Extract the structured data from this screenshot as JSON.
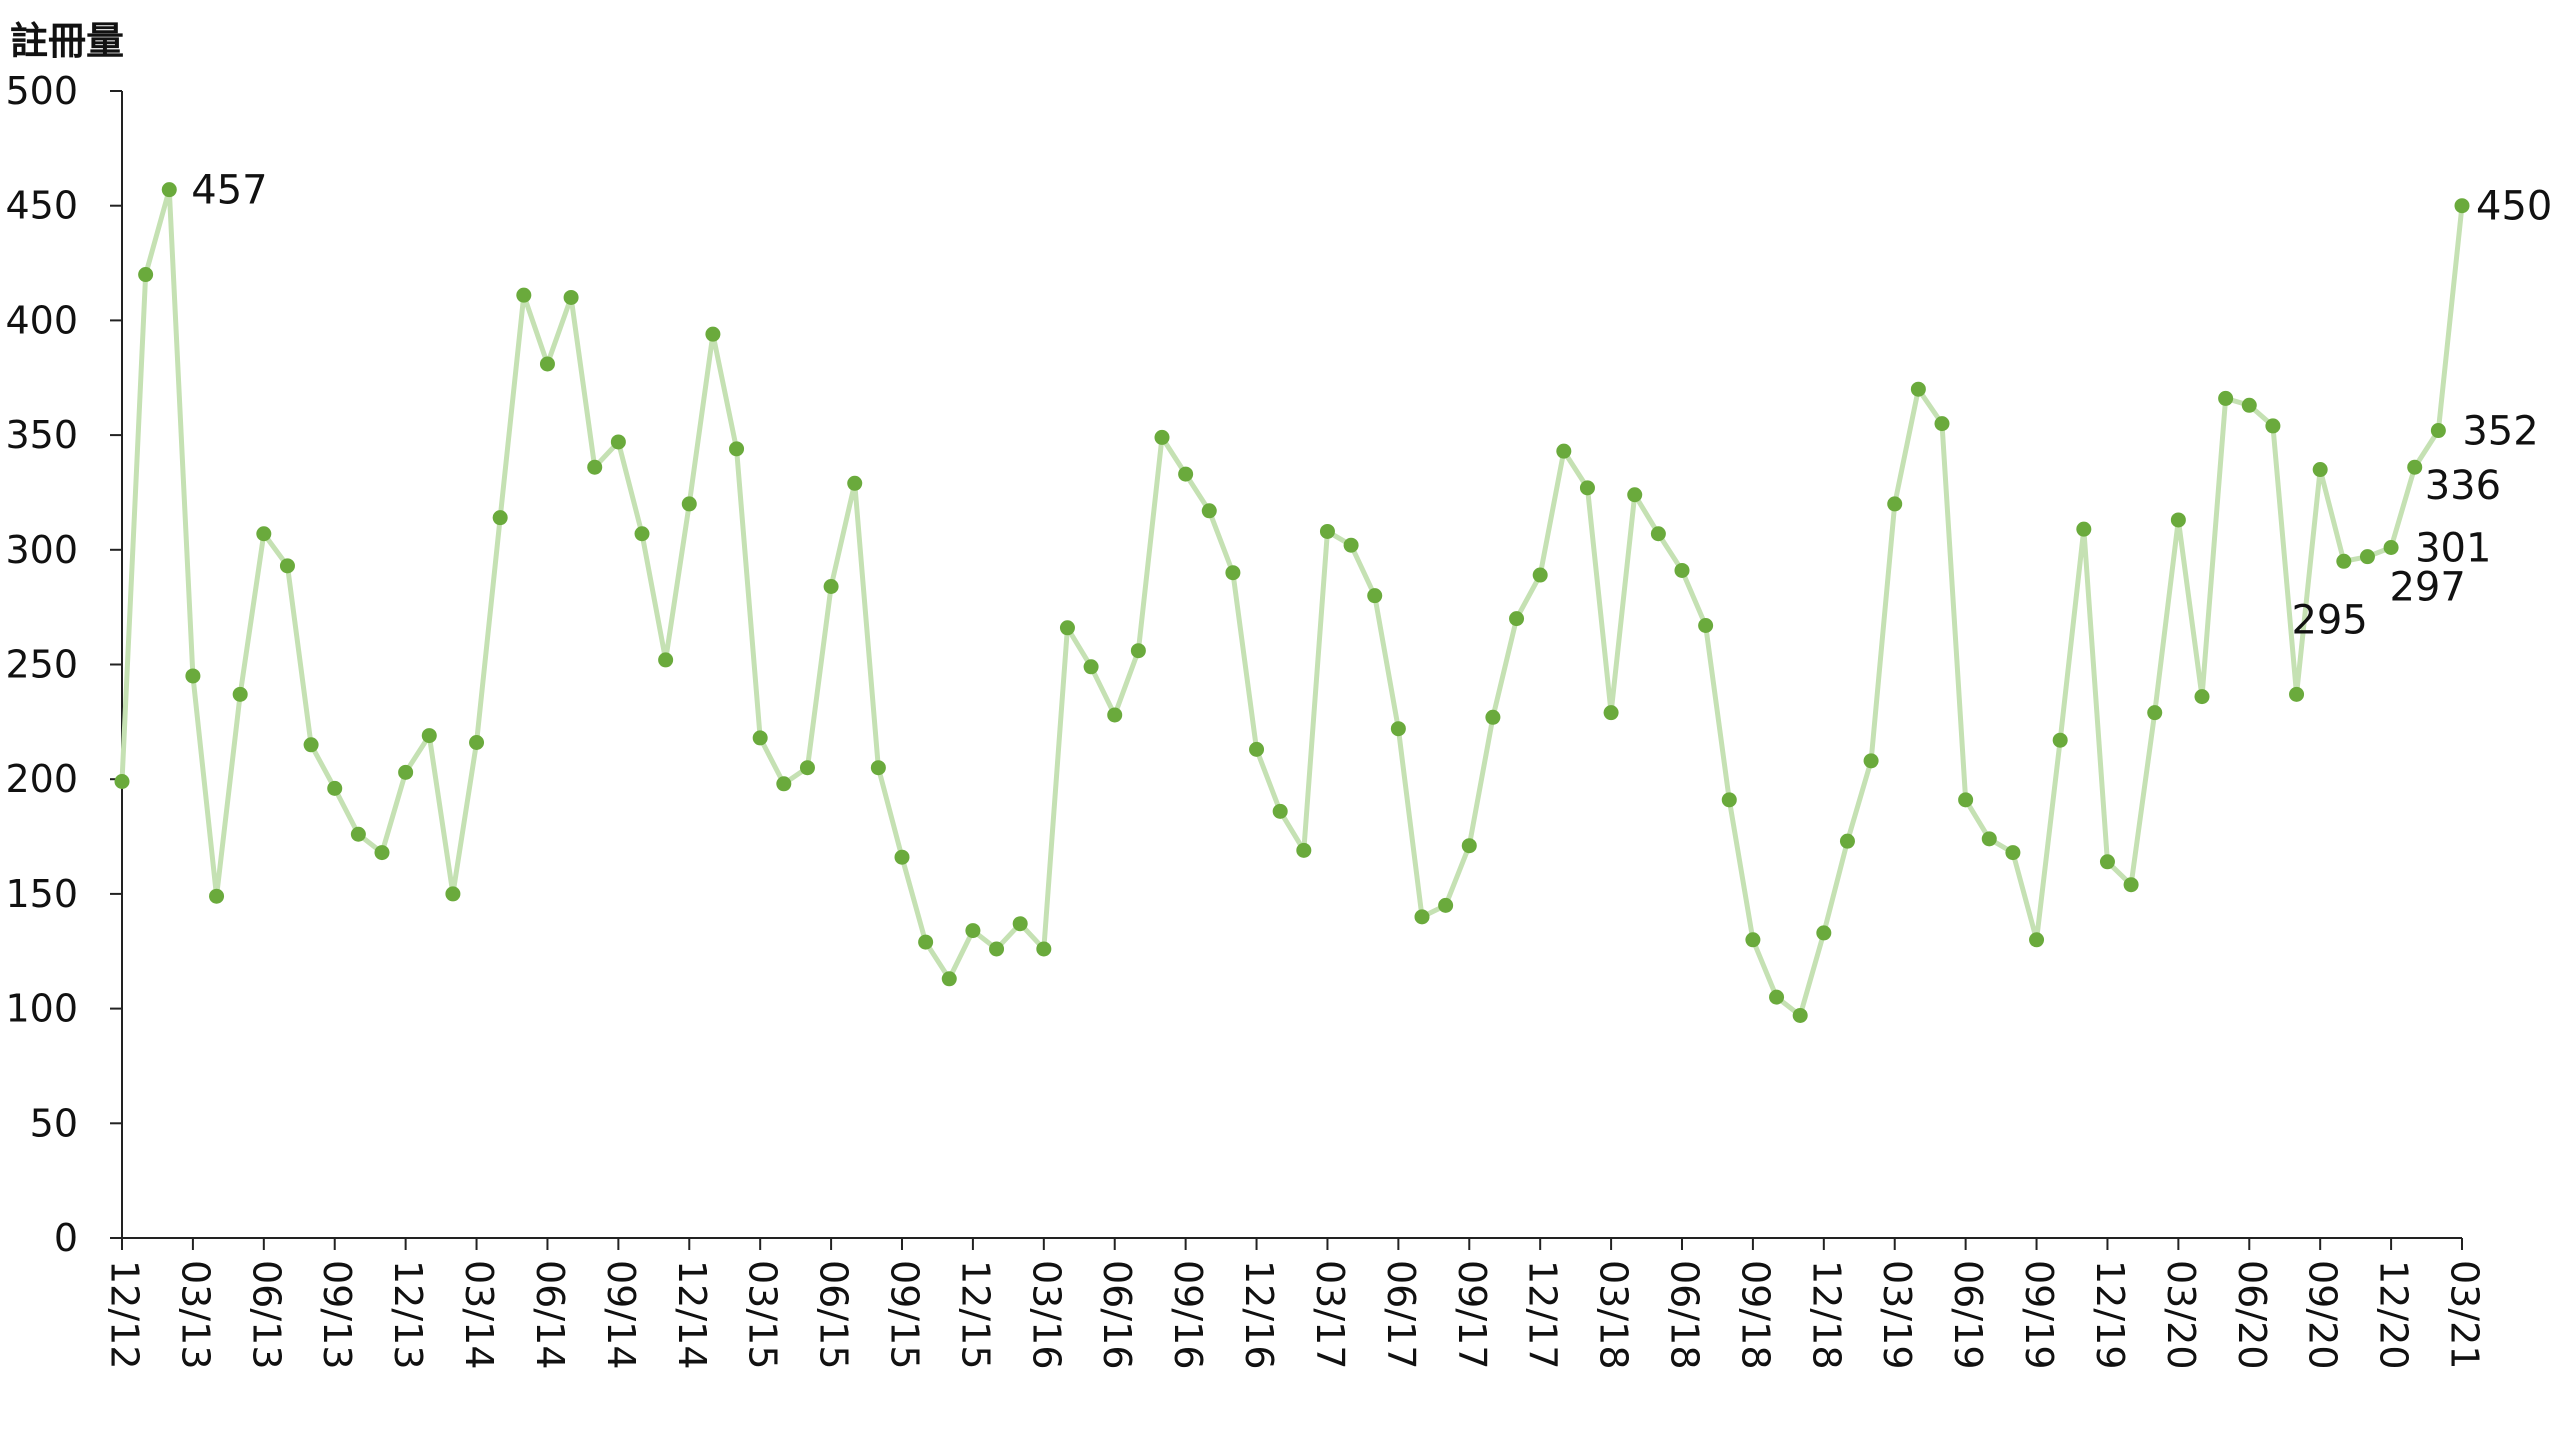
{
  "chart_data": {
    "type": "line",
    "title": "",
    "ylabel": "註冊量",
    "xlabel": "",
    "ylim": [
      0,
      500
    ],
    "yticks": [
      0,
      50,
      100,
      150,
      200,
      250,
      300,
      350,
      400,
      450,
      500
    ],
    "grid": false,
    "legend": "none",
    "line_color": "#c5e1b3",
    "marker_color": "#6aaa3c",
    "x_tick_labels": [
      "12/12",
      "03/13",
      "06/13",
      "09/13",
      "12/13",
      "03/14",
      "06/14",
      "09/14",
      "12/14",
      "03/15",
      "06/15",
      "09/15",
      "12/15",
      "03/16",
      "06/16",
      "09/16",
      "12/16",
      "03/17",
      "06/17",
      "09/17",
      "12/17",
      "03/18",
      "06/18",
      "09/18",
      "12/18",
      "03/19",
      "06/19",
      "09/19",
      "12/19",
      "03/20",
      "06/20",
      "09/20",
      "12/20",
      "03/21"
    ],
    "series": [
      {
        "values": [
          199,
          420,
          457,
          245,
          149,
          237,
          307,
          293,
          215,
          196,
          176,
          168,
          203,
          219,
          150,
          216,
          314,
          411,
          381,
          410,
          336,
          347,
          307,
          252,
          320,
          394,
          344,
          218,
          198,
          205,
          284,
          329,
          205,
          166,
          129,
          113,
          134,
          126,
          137,
          126,
          266,
          249,
          228,
          256,
          349,
          333,
          317,
          290,
          213,
          186,
          169,
          308,
          302,
          280,
          222,
          140,
          145,
          171,
          227,
          270,
          289,
          343,
          327,
          229,
          324,
          307,
          291,
          267,
          191,
          130,
          105,
          97,
          133,
          173,
          208,
          320,
          370,
          355,
          191,
          174,
          168,
          130,
          217,
          309,
          164,
          154,
          229,
          313,
          236,
          366,
          363,
          354,
          237,
          335,
          295,
          297,
          301,
          336,
          352,
          450
        ]
      }
    ],
    "data_labels": [
      {
        "index": 2,
        "text": "457"
      },
      {
        "index": 94,
        "text": "295"
      },
      {
        "index": 95,
        "text": "297"
      },
      {
        "index": 96,
        "text": "301"
      },
      {
        "index": 97,
        "text": "336"
      },
      {
        "index": 98,
        "text": "352"
      },
      {
        "index": 99,
        "text": "450"
      }
    ]
  }
}
